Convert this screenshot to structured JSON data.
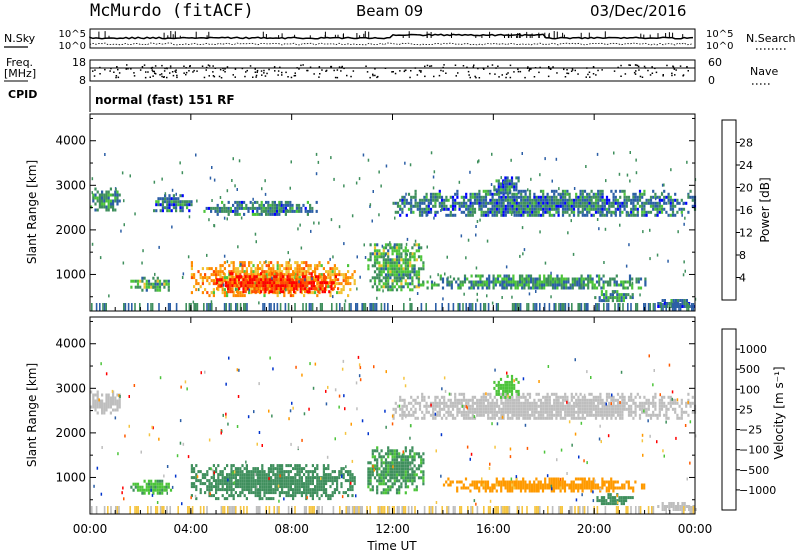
{
  "header": {
    "station": "McMurdo (fitACF)",
    "beam": "Beam 09",
    "date": "03/Dec/2016"
  },
  "top_panels": {
    "nsky_label": "N.Sky",
    "nsearch_label": "N.Search",
    "noise_ticks_left": [
      "10^5",
      "10^0"
    ],
    "noise_ticks_right": [
      "10^5",
      "10^0"
    ],
    "freq_label": "Freq.",
    "freq_unit": "[MHz]",
    "freq_ticks": [
      "18",
      "8"
    ],
    "nave_label": "Nave",
    "nave_ticks": [
      "60",
      "0"
    ],
    "cpid_label": "CPID",
    "cpid_text": "normal (fast) 151 RF"
  },
  "colors": {
    "power": [
      "#0000ff",
      "#2c5fa6",
      "#3f8f5d",
      "#4cc43a",
      "#f2c230",
      "#ff8a00",
      "#ff4d00",
      "#ff0000"
    ],
    "velocity": [
      "#ff0000",
      "#ff5a00",
      "#ff9a00",
      "#f5c542",
      "#bebebe",
      "#4cc43a",
      "#3f8f5d",
      "#2c5fa6",
      "#0033cc"
    ]
  },
  "chart_data": [
    {
      "type": "heatmap",
      "xlabel": "",
      "ylabel": "Slant Range [km]",
      "x_range": [
        "00:00",
        "24:00"
      ],
      "ylim": [
        180,
        4600
      ],
      "y_ticks": [
        1000,
        2000,
        3000,
        4000
      ],
      "colorbar": {
        "label": "Power [dB]",
        "ticks": [
          4,
          8,
          12,
          16,
          20,
          24,
          28
        ],
        "range": [
          0,
          32
        ]
      },
      "echo_regions": [
        {
          "t": [
            0.0,
            1.2
          ],
          "r": [
            2450,
            2950
          ],
          "value": 10
        },
        {
          "t": [
            1.6,
            3.2
          ],
          "r": [
            650,
            950
          ],
          "value": 12
        },
        {
          "t": [
            2.5,
            4.0
          ],
          "r": [
            2400,
            2800
          ],
          "value": 8
        },
        {
          "t": [
            4.0,
            10.5
          ],
          "r": [
            550,
            1300
          ],
          "value": 20
        },
        {
          "t": [
            5.0,
            9.8
          ],
          "r": [
            600,
            1050
          ],
          "value": 27
        },
        {
          "t": [
            4.5,
            9.0
          ],
          "r": [
            2350,
            2650
          ],
          "value": 8
        },
        {
          "t": [
            11.0,
            13.2
          ],
          "r": [
            650,
            1700
          ],
          "value": 12
        },
        {
          "t": [
            12.0,
            24.0
          ],
          "r": [
            2300,
            2900
          ],
          "value": 8
        },
        {
          "t": [
            13.0,
            22.0
          ],
          "r": [
            700,
            1000
          ],
          "value": 10
        },
        {
          "t": [
            16.0,
            17.0
          ],
          "r": [
            2800,
            3200
          ],
          "value": 8
        },
        {
          "t": [
            20.0,
            21.5
          ],
          "r": [
            400,
            650
          ],
          "value": 10
        },
        {
          "t": [
            22.5,
            24.0
          ],
          "r": [
            250,
            450
          ],
          "value": 8
        }
      ]
    },
    {
      "type": "heatmap",
      "xlabel": "Time UT",
      "ylabel": "Slant Range [km]",
      "x_range": [
        "00:00",
        "24:00"
      ],
      "x_ticks": [
        "00:00",
        "04:00",
        "08:00",
        "12:00",
        "16:00",
        "20:00",
        "00:00"
      ],
      "ylim": [
        180,
        4600
      ],
      "y_ticks": [
        1000,
        2000,
        3000,
        4000
      ],
      "colorbar": {
        "label": "Velocity [m s⁻¹]",
        "ticks": [
          -1000,
          -500,
          -100,
          -25,
          25,
          100,
          500,
          1000
        ],
        "tick_labels": [
          "−1000",
          "−500",
          "−100",
          "−25",
          "25",
          "100",
          "500",
          "1000"
        ]
      },
      "echo_regions": [
        {
          "t": [
            0.0,
            1.2
          ],
          "r": [
            2450,
            2950
          ],
          "value": 0
        },
        {
          "t": [
            1.6,
            3.2
          ],
          "r": [
            650,
            950
          ],
          "value": 80
        },
        {
          "t": [
            4.0,
            10.5
          ],
          "r": [
            550,
            1300
          ],
          "value": 300
        },
        {
          "t": [
            11.0,
            13.2
          ],
          "r": [
            650,
            1700
          ],
          "value": 120
        },
        {
          "t": [
            12.0,
            24.0
          ],
          "r": [
            2300,
            2900
          ],
          "value": 0
        },
        {
          "t": [
            14.0,
            22.0
          ],
          "r": [
            700,
            1000
          ],
          "value": -150
        },
        {
          "t": [
            16.0,
            17.0
          ],
          "r": [
            2800,
            3300
          ],
          "value": 60
        },
        {
          "t": [
            20.0,
            21.5
          ],
          "r": [
            400,
            650
          ],
          "value": 300
        },
        {
          "t": [
            22.5,
            24.0
          ],
          "r": [
            250,
            450
          ],
          "value": 0
        }
      ]
    }
  ]
}
